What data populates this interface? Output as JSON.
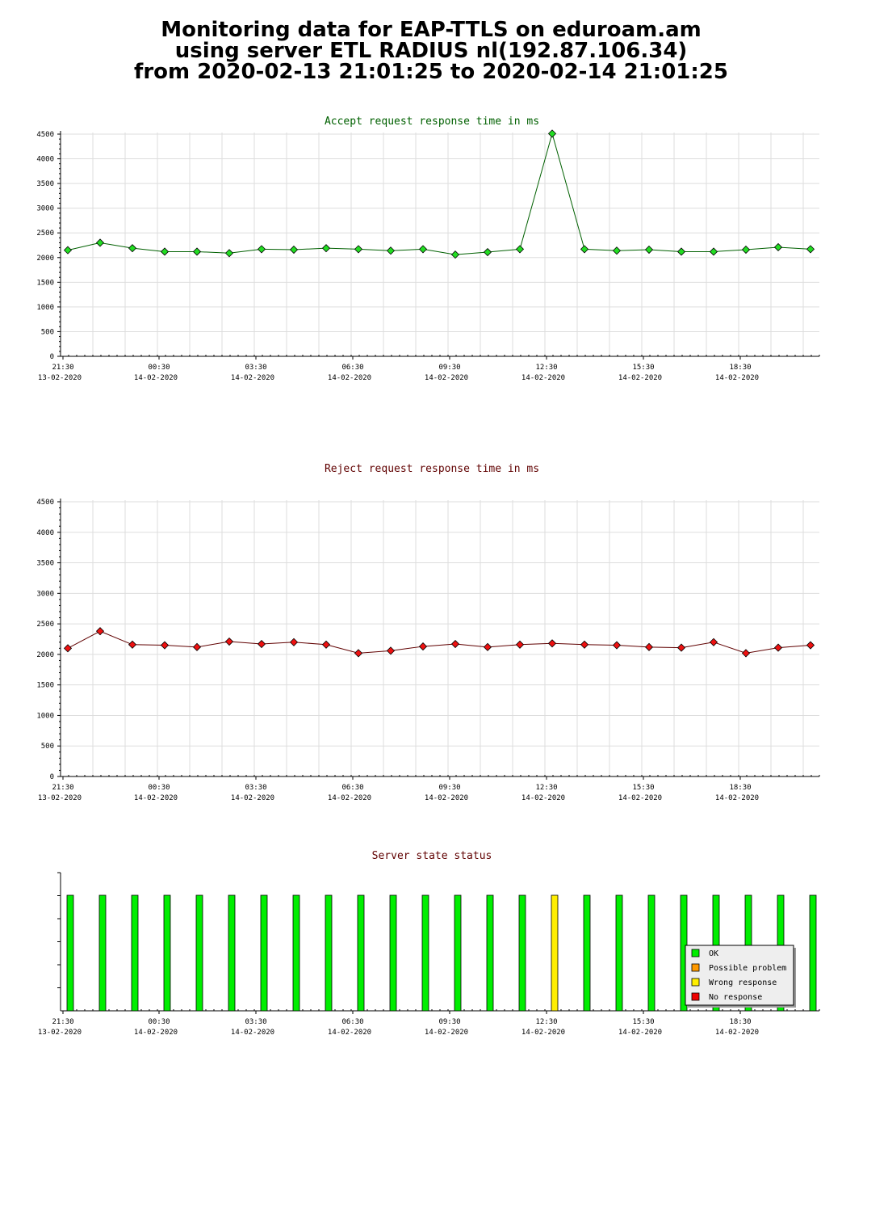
{
  "page": {
    "title_lines": [
      "Monitoring data for EAP-TTLS on eduroam.am",
      "using server ETL RADIUS nl(192.87.106.34)",
      "from 2020-02-13 21:01:25 to 2020-02-14 21:01:25"
    ]
  },
  "x_ticks": [
    {
      "time": "21:30",
      "date": "13-02-2020"
    },
    {
      "time": "00:30",
      "date": "14-02-2020"
    },
    {
      "time": "03:30",
      "date": "14-02-2020"
    },
    {
      "time": "06:30",
      "date": "14-02-2020"
    },
    {
      "time": "09:30",
      "date": "14-02-2020"
    },
    {
      "time": "12:30",
      "date": "14-02-2020"
    },
    {
      "time": "15:30",
      "date": "14-02-2020"
    },
    {
      "time": "18:30",
      "date": "14-02-2020"
    }
  ],
  "chart_data": [
    {
      "type": "line",
      "title": "Accept request response time in ms",
      "title_color": "#006000",
      "line_color": "#006000",
      "marker_color": "#22dd22",
      "ylim": [
        0,
        4500
      ],
      "yticks": [
        0,
        500,
        1000,
        1500,
        2000,
        2500,
        3000,
        3500,
        4000,
        4500
      ],
      "grid": true,
      "values": [
        2150,
        2300,
        2190,
        2120,
        2120,
        2090,
        2170,
        2160,
        2190,
        2170,
        2140,
        2170,
        2060,
        2110,
        2170,
        4510,
        2170,
        2140,
        2160,
        2120,
        2120,
        2160,
        2210,
        2170
      ]
    },
    {
      "type": "line",
      "title": "Reject request response time in ms",
      "title_color": "#600000",
      "line_color": "#600000",
      "marker_color": "#ee1111",
      "ylim": [
        0,
        4500
      ],
      "yticks": [
        0,
        500,
        1000,
        1500,
        2000,
        2500,
        3000,
        3500,
        4000,
        4500
      ],
      "grid": true,
      "values": [
        2100,
        2380,
        2160,
        2150,
        2120,
        2210,
        2170,
        2200,
        2160,
        2020,
        2060,
        2130,
        2170,
        2120,
        2160,
        2180,
        2160,
        2150,
        2120,
        2110,
        2200,
        2020,
        2110,
        2150
      ]
    },
    {
      "type": "bar",
      "title": "Server state status",
      "title_color": "#600000",
      "grid": false,
      "status_colors": {
        "OK": "#00ee00",
        "Possible problem": "#ff9900",
        "Wrong response": "#ffee00",
        "No response": "#ee0000"
      },
      "statuses": [
        "OK",
        "OK",
        "OK",
        "OK",
        "OK",
        "OK",
        "OK",
        "OK",
        "OK",
        "OK",
        "OK",
        "OK",
        "OK",
        "OK",
        "OK",
        "Wrong response",
        "OK",
        "OK",
        "OK",
        "OK",
        "OK",
        "OK",
        "OK",
        "OK"
      ],
      "legend": [
        "OK",
        "Possible problem",
        "Wrong response",
        "No response"
      ],
      "legend_position": "bottom-right"
    }
  ]
}
